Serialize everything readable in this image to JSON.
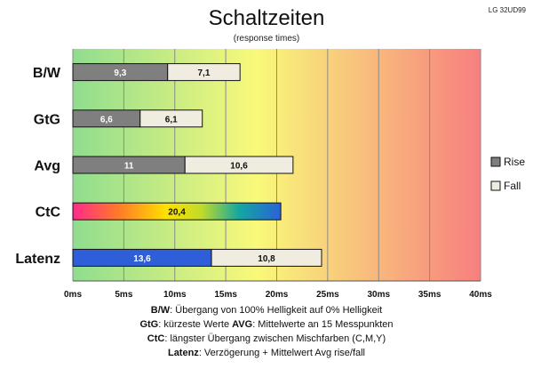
{
  "chart_data": {
    "type": "bar",
    "stacked": true,
    "orientation": "horizontal",
    "title": "Schaltzeiten",
    "subtitle": "(response times)",
    "model": "LG 32UD99",
    "categories": [
      "B/W",
      "GtG",
      "Avg",
      "CtC",
      "Latenz"
    ],
    "series": [
      {
        "name": "Rise",
        "values": [
          9.3,
          6.6,
          11,
          20.4,
          13.6
        ],
        "labels": [
          "9,3",
          "6,6",
          "11",
          "20,4",
          "13,6"
        ]
      },
      {
        "name": "Fall",
        "values": [
          7.1,
          6.1,
          10.6,
          null,
          10.8
        ],
        "labels": [
          "7,1",
          "6,1",
          "10,6",
          "",
          "10,8"
        ]
      }
    ],
    "x_ticks": [
      "0ms",
      "5ms",
      "10ms",
      "15ms",
      "20ms",
      "25ms",
      "30ms",
      "35ms",
      "40ms"
    ],
    "xlim": [
      0,
      40
    ],
    "grid": true,
    "legend_position": "right",
    "colors": {
      "rise": "#7f7f7f",
      "fall": "#f0ecdf",
      "latenz_rise": "#2f5fd8",
      "bg_green": "#8fdd8f",
      "bg_yellow": "#f9f97a",
      "bg_red": "#f77f7f"
    },
    "footnotes": [
      {
        "bold": "B/W",
        "text": ":  Übergang von 100% Helligkeit auf 0% Helligkeit"
      },
      {
        "bold": "GtG",
        "text": ": kürzeste  Werte       ",
        "bold2": "AVG",
        "text2": ": Mittelwerte  an 15 Messpunkten"
      },
      {
        "bold": "CtC",
        "text": ": längster Übergang  zwischen Mischfarben (C,M,Y)"
      },
      {
        "bold": "Latenz",
        "text": ": Verzögerung  + Mittelwert Avg rise/fall"
      }
    ]
  }
}
